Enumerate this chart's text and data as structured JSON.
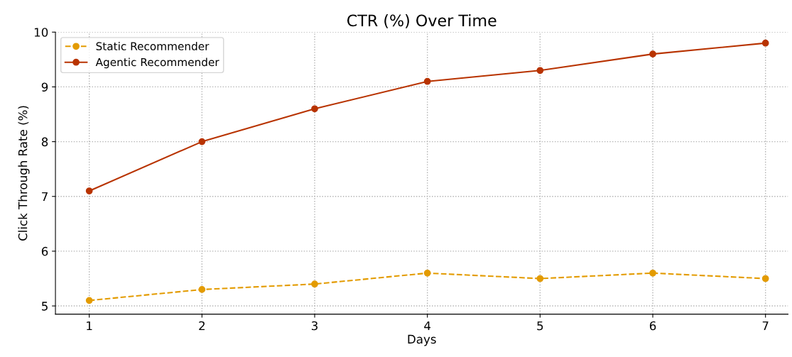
{
  "chart_data": {
    "type": "line",
    "title": "CTR (%) Over Time",
    "xlabel": "Days",
    "ylabel": "Click Through Rate (%)",
    "x": [
      1,
      2,
      3,
      4,
      5,
      6,
      7
    ],
    "series": [
      {
        "name": "Static Recommender",
        "color": "#e39b00",
        "line_style": "dashed",
        "values": [
          5.1,
          5.3,
          5.4,
          5.6,
          5.5,
          5.6,
          5.5
        ]
      },
      {
        "name": "Agentic Recommender",
        "color": "#b83300",
        "line_style": "solid",
        "values": [
          7.1,
          8.0,
          8.6,
          9.1,
          9.3,
          9.6,
          9.8
        ]
      }
    ],
    "xlim": [
      0.7,
      7.2
    ],
    "ylim": [
      4.85,
      10
    ],
    "xticks": [
      1,
      2,
      3,
      4,
      5,
      6,
      7
    ],
    "yticks": [
      5,
      6,
      7,
      8,
      9,
      10
    ],
    "grid": true,
    "legend": "top left",
    "marker": "circle"
  }
}
